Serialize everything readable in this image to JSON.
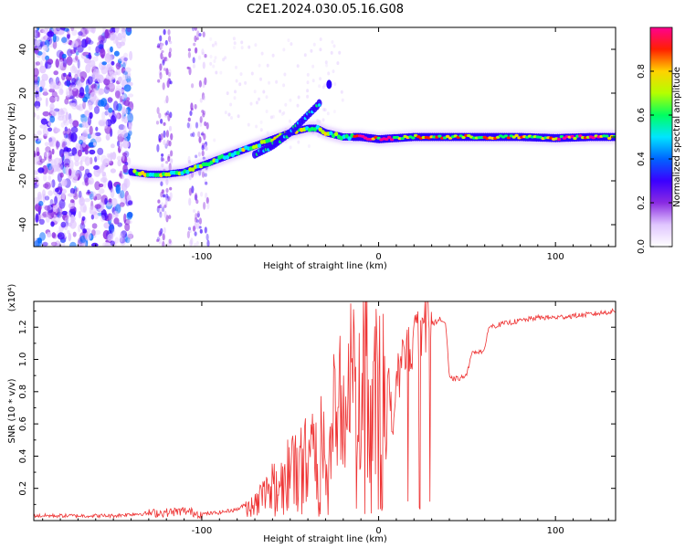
{
  "title": "C2E1.2024.030.05.16.G08",
  "chart_data": [
    {
      "type": "heatmap",
      "xlabel": "Height of straight line (km)",
      "ylabel": "Frequency (Hz)",
      "xlim": [
        -195,
        134
      ],
      "ylim": [
        -50,
        50
      ],
      "x_ticks": [
        -100,
        0,
        100
      ],
      "x_tick_labels": [
        "-100",
        "0",
        "100"
      ],
      "y_ticks": [
        -40,
        -20,
        0,
        20,
        40
      ],
      "y_tick_labels": [
        "-40",
        "-20",
        "0",
        "20",
        "40"
      ],
      "colorbar": {
        "label": "Normalized spectral amplitude",
        "range": [
          0,
          1
        ],
        "ticks": [
          0.0,
          0.2,
          0.4,
          0.6,
          0.8
        ],
        "tick_labels": [
          "0.0",
          "0.2",
          "0.4",
          "0.6",
          "0.8"
        ],
        "colors": [
          "#ffffff",
          "#e0c6ff",
          "#8a2be2",
          "#3a00ff",
          "#0064ff",
          "#00e5ff",
          "#00ff60",
          "#b4ff00",
          "#ffd200",
          "#ff2000",
          "#ff0090"
        ]
      },
      "trace": {
        "x": [
          -140,
          -130,
          -120,
          -110,
          -100,
          -90,
          -80,
          -70,
          -60,
          -50,
          -40,
          -35,
          -30,
          -20,
          -10,
          0,
          10,
          20,
          40,
          60,
          80,
          100,
          120,
          134
        ],
        "y": [
          -16,
          -17,
          -17,
          -16,
          -13,
          -10,
          -7,
          -4,
          -1,
          2,
          4,
          4,
          2,
          0,
          0,
          -1,
          -0.5,
          0,
          0,
          0,
          0,
          -0.5,
          0,
          0
        ]
      },
      "branch": {
        "x": [
          -70,
          -60,
          -50,
          -45,
          -40,
          -35,
          -33
        ],
        "y": [
          -8,
          -4,
          2,
          6,
          10,
          14,
          16
        ]
      },
      "isolated_point": {
        "x": -28,
        "y": 24
      }
    },
    {
      "type": "line",
      "xlabel": "Height of straight line (km)",
      "ylabel": "SNR (10 * v/v)",
      "y_multiplier": "(x10⁴)",
      "xlim": [
        -195,
        134
      ],
      "ylim": [
        0,
        1.36
      ],
      "x_ticks": [
        -100,
        0,
        100
      ],
      "x_tick_labels": [
        "-100",
        "0",
        "100"
      ],
      "y_ticks": [
        0.2,
        0.4,
        0.6,
        0.8,
        1.0,
        1.2
      ],
      "y_tick_labels": [
        "0.2",
        "0.4",
        "0.6",
        "0.8",
        "1.0",
        "1.2"
      ],
      "color": "#ee3333",
      "series": [
        {
          "x": [
            -195,
            -150,
            -140,
            -120,
            -110,
            -100,
            -90,
            -80,
            -75,
            -70,
            -65,
            -60,
            -55,
            -50,
            -45,
            -40,
            -35,
            -30,
            -25,
            -20,
            -15,
            -10,
            -5,
            0,
            5,
            8,
            10,
            15,
            20,
            25,
            28,
            30,
            35,
            38,
            40,
            45,
            50,
            52,
            55,
            60,
            62,
            70,
            80,
            90,
            100,
            110,
            120,
            134
          ],
          "y": [
            0.03,
            0.03,
            0.04,
            0.05,
            0.06,
            0.04,
            0.05,
            0.07,
            0.1,
            0.14,
            0.18,
            0.25,
            0.3,
            0.35,
            0.4,
            0.45,
            0.52,
            0.6,
            0.68,
            0.8,
            0.95,
            1.05,
            1.0,
            0.95,
            0.9,
            0.6,
            0.9,
            1.1,
            1.15,
            1.2,
            1.3,
            1.22,
            1.25,
            1.22,
            0.88,
            0.88,
            0.9,
            1.03,
            1.05,
            1.05,
            1.2,
            1.22,
            1.24,
            1.26,
            1.26,
            1.27,
            1.28,
            1.3
          ]
        }
      ]
    }
  ]
}
